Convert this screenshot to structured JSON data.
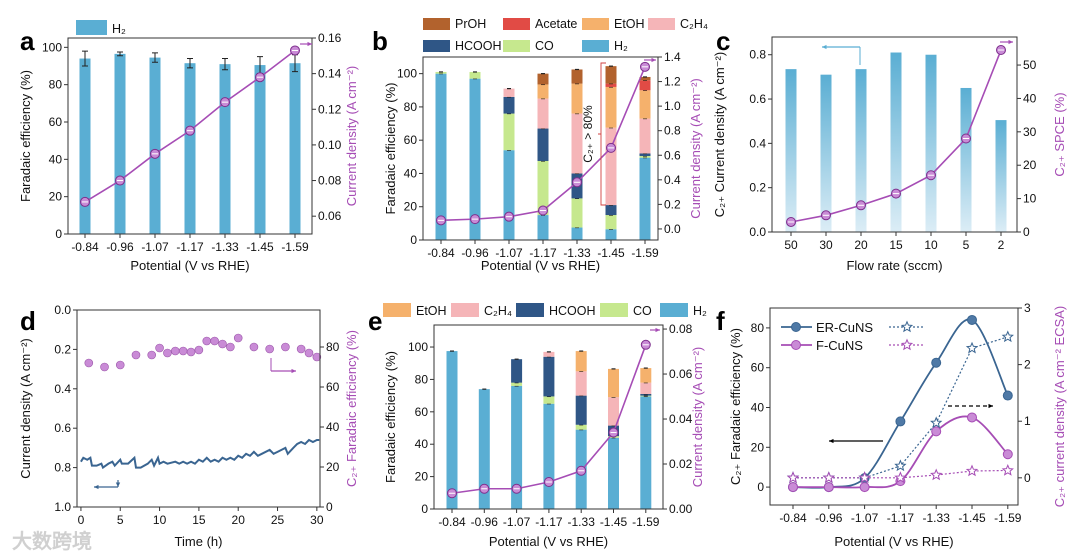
{
  "watermark": "大数跨境",
  "colors": {
    "H2": "#5aaed3",
    "CO": "#c6e88e",
    "HCOOH": "#2f5686",
    "C2H4": "#f5b5b8",
    "EtOH": "#f5b16c",
    "Acetate": "#e14b45",
    "PrOH": "#b2622d",
    "purple": "#a64db5",
    "marker": "#c98bd6",
    "er": "#3a6591",
    "text": "#111111"
  },
  "chart_data": [
    {
      "panel": "a",
      "type": "bar+line",
      "categories": [
        "-0.84",
        "-0.96",
        "-1.07",
        "-1.17",
        "-1.33",
        "-1.45",
        "-1.59"
      ],
      "xlabel": "Potential (V vs RHE)",
      "ylabel": "Faradaic efficiency (%)",
      "y2label": "Current density (A cm⁻²)",
      "ylim": [
        0,
        105
      ],
      "yticks": [
        "0",
        "20",
        "40",
        "60",
        "80",
        "100"
      ],
      "y2lim": [
        0.05,
        0.16
      ],
      "y2ticks": [
        "0.06",
        "0.08",
        "0.10",
        "0.12",
        "0.14",
        "0.16"
      ],
      "legend": [
        {
          "name": "H₂",
          "key": "H2"
        }
      ],
      "bars": [
        {
          "name": "H₂",
          "key": "H2",
          "values": [
            94,
            96.5,
            94.5,
            91.5,
            91,
            90.5,
            91.5
          ],
          "errors": [
            4,
            1,
            2.5,
            2.5,
            3,
            4.5,
            4.5
          ]
        }
      ],
      "line": {
        "name": "Current density",
        "values": [
          0.068,
          0.08,
          0.095,
          0.108,
          0.124,
          0.138,
          0.153
        ]
      }
    },
    {
      "panel": "b",
      "type": "stacked-bar+line",
      "categories": [
        "-0.84",
        "-0.96",
        "-1.07",
        "-1.17",
        "-1.33",
        "-1.45",
        "-1.59"
      ],
      "xlabel": "Potential (V vs RHE)",
      "ylabel": "Faradaic efficiency (%)",
      "y2label": "Current density (A cm⁻²)",
      "ylim": [
        0,
        110
      ],
      "yticks": [
        "0",
        "20",
        "40",
        "60",
        "80",
        "100"
      ],
      "y2lim": [
        -0.09,
        1.4
      ],
      "y2ticks": [
        "0.0",
        "0.2",
        "0.4",
        "0.6",
        "0.8",
        "1.0",
        "1.2",
        "1.4"
      ],
      "legend": [
        {
          "name": "PrOH",
          "key": "PrOH"
        },
        {
          "name": "Acetate",
          "key": "Acetate"
        },
        {
          "name": "EtOH",
          "key": "EtOH"
        },
        {
          "name": "C₂H₄",
          "key": "C2H4"
        },
        {
          "name": "HCOOH",
          "key": "HCOOH"
        },
        {
          "name": "CO",
          "key": "CO"
        },
        {
          "name": "H₂",
          "key": "H2"
        }
      ],
      "stack": [
        {
          "name": "H₂",
          "key": "H2",
          "values": [
            100,
            97,
            54,
            15,
            7.5,
            6.5,
            49.5
          ]
        },
        {
          "name": "CO",
          "key": "CO",
          "values": [
            1,
            4,
            22,
            32.5,
            17.5,
            8.5,
            1
          ]
        },
        {
          "name": "HCOOH",
          "key": "HCOOH",
          "values": [
            0,
            0,
            10,
            19.5,
            15,
            6,
            1.5
          ]
        },
        {
          "name": "C₂H₄",
          "key": "C2H4",
          "values": [
            0,
            0,
            5,
            18,
            36,
            46.5,
            21
          ]
        },
        {
          "name": "EtOH",
          "key": "EtOH",
          "values": [
            0,
            0,
            0,
            8.5,
            18,
            24.5,
            17
          ]
        },
        {
          "name": "Acetate",
          "key": "Acetate",
          "values": [
            0,
            0,
            0,
            0,
            0,
            2,
            6
          ]
        },
        {
          "name": "PrOH",
          "key": "PrOH",
          "values": [
            0,
            0,
            0,
            6.5,
            8.5,
            10.5,
            2
          ]
        }
      ],
      "line": {
        "name": "Current density",
        "values": [
          0.07,
          0.08,
          0.1,
          0.15,
          0.38,
          0.66,
          1.32
        ]
      },
      "annotation": "C₂₊ > 80%"
    },
    {
      "panel": "c",
      "type": "bar+line",
      "categories": [
        "50",
        "30",
        "20",
        "15",
        "10",
        "5",
        "2"
      ],
      "xlabel": "Flow rate (sccm)",
      "ylabel": "C₂₊ Current density (A cm⁻²)",
      "y2label": "C₂₊ SPCE (%)",
      "ylim": [
        0,
        0.88
      ],
      "yticks": [
        "0.0",
        "0.2",
        "0.4",
        "0.6",
        "0.8"
      ],
      "y2lim": [
        0,
        58.4
      ],
      "y2ticks": [
        "0",
        "10",
        "20",
        "30",
        "40",
        "50"
      ],
      "bars": [
        {
          "name": "C₂₊ current density",
          "key": "H2",
          "values": [
            0.735,
            0.71,
            0.735,
            0.81,
            0.8,
            0.65,
            0.505
          ]
        }
      ],
      "line": {
        "name": "C₂₊ SPCE",
        "values": [
          3,
          5,
          8,
          11.5,
          17,
          28,
          54.5
        ]
      }
    },
    {
      "panel": "d",
      "type": "line+scatter",
      "xlabel": "Time (h)",
      "ylabel": "Current density (A cm⁻²)",
      "y2label": "C₂₊ Faradaic efficiency (%)",
      "xlim": [
        -0.5,
        30.4
      ],
      "xticks": [
        "0",
        "5",
        "10",
        "15",
        "20",
        "25",
        "30"
      ],
      "ylim": [
        0,
        1
      ],
      "yinverted": true,
      "yticks": [
        "0.0",
        "0.2",
        "0.4",
        "0.6",
        "0.8",
        "1.0"
      ],
      "y2lim": [
        0,
        98.5
      ],
      "y2ticks": [
        "0",
        "20",
        "40",
        "60",
        "80"
      ],
      "current": [
        [
          0,
          0.77
        ],
        [
          0.3,
          0.75
        ],
        [
          0.8,
          0.76
        ],
        [
          1.2,
          0.75
        ],
        [
          1.4,
          0.79
        ],
        [
          2,
          0.79
        ],
        [
          2.6,
          0.78
        ],
        [
          2.8,
          0.8
        ],
        [
          3.5,
          0.78
        ],
        [
          4,
          0.77
        ],
        [
          4.3,
          0.79
        ],
        [
          5,
          0.76
        ],
        [
          5.2,
          0.78
        ],
        [
          6,
          0.78
        ],
        [
          6.8,
          0.75
        ],
        [
          7,
          0.8
        ],
        [
          7.6,
          0.8
        ],
        [
          8.5,
          0.78
        ],
        [
          9,
          0.76
        ],
        [
          9.3,
          0.79
        ],
        [
          9.8,
          0.75
        ],
        [
          10,
          0.78
        ],
        [
          10.5,
          0.77
        ],
        [
          11,
          0.78
        ],
        [
          12,
          0.77
        ],
        [
          12.5,
          0.78
        ],
        [
          13,
          0.77
        ],
        [
          13.5,
          0.78
        ],
        [
          14,
          0.77
        ],
        [
          14.5,
          0.78
        ],
        [
          15,
          0.76
        ],
        [
          15.5,
          0.77
        ],
        [
          16,
          0.75
        ],
        [
          16.5,
          0.77
        ],
        [
          17,
          0.76
        ],
        [
          17.5,
          0.77
        ],
        [
          18,
          0.75
        ],
        [
          18.5,
          0.76
        ],
        [
          19,
          0.75
        ],
        [
          19.5,
          0.76
        ],
        [
          20,
          0.74
        ],
        [
          20.5,
          0.75
        ],
        [
          21,
          0.73
        ],
        [
          21.5,
          0.74
        ],
        [
          22,
          0.72
        ],
        [
          22.5,
          0.74
        ],
        [
          23,
          0.73
        ],
        [
          24,
          0.71
        ],
        [
          24.5,
          0.73
        ],
        [
          25,
          0.72
        ],
        [
          26,
          0.7
        ],
        [
          26.3,
          0.73
        ],
        [
          27,
          0.7
        ],
        [
          27.5,
          0.68
        ],
        [
          28,
          0.67
        ],
        [
          28.5,
          0.68
        ],
        [
          29,
          0.66
        ],
        [
          29.5,
          0.67
        ],
        [
          30,
          0.66
        ],
        [
          30.3,
          0.66
        ]
      ],
      "fe": [
        [
          1,
          72
        ],
        [
          3,
          70
        ],
        [
          5,
          71
        ],
        [
          7,
          76
        ],
        [
          9,
          76
        ],
        [
          10,
          79.5
        ],
        [
          11,
          77
        ],
        [
          12,
          78
        ],
        [
          13,
          78
        ],
        [
          14,
          77.5
        ],
        [
          15,
          78.5
        ],
        [
          16,
          83
        ],
        [
          17,
          83
        ],
        [
          18,
          81.5
        ],
        [
          19,
          80
        ],
        [
          20,
          84.5
        ],
        [
          22,
          80
        ],
        [
          24,
          79
        ],
        [
          26,
          80
        ],
        [
          28,
          79
        ],
        [
          29,
          77
        ],
        [
          30,
          75
        ]
      ]
    },
    {
      "panel": "e",
      "type": "stacked-bar+line",
      "categories": [
        "-0.84",
        "-0.96",
        "-1.07",
        "-1.17",
        "-1.33",
        "-1.45",
        "-1.59"
      ],
      "xlabel": "Potential (V vs RHE)",
      "ylabel": "Faradaic efficiency (%)",
      "y2label": "Current density (A cm⁻²)",
      "ylim": [
        0,
        113.6
      ],
      "yticks": [
        "0",
        "20",
        "40",
        "60",
        "80",
        "100"
      ],
      "y2lim": [
        0,
        0.0818
      ],
      "y2ticks": [
        "0.00",
        "0.02",
        "0.04",
        "0.06",
        "0.08"
      ],
      "legend": [
        {
          "name": "EtOH",
          "key": "EtOH"
        },
        {
          "name": "C₂H₄",
          "key": "C2H4"
        },
        {
          "name": "HCOOH",
          "key": "HCOOH"
        },
        {
          "name": "CO",
          "key": "CO"
        },
        {
          "name": "H₂",
          "key": "H2"
        }
      ],
      "stack": [
        {
          "name": "H₂",
          "key": "H2",
          "values": [
            97.5,
            74,
            76,
            65,
            49,
            44,
            69.5
          ]
        },
        {
          "name": "CO",
          "key": "CO",
          "values": [
            0,
            0,
            2,
            4.5,
            3,
            1,
            0.5
          ]
        },
        {
          "name": "HCOOH",
          "key": "HCOOH",
          "values": [
            0,
            0,
            14.5,
            24.5,
            18,
            6.5,
            1
          ]
        },
        {
          "name": "C₂H₄",
          "key": "C2H4",
          "values": [
            0,
            0,
            0,
            3,
            15,
            17.5,
            7
          ]
        },
        {
          "name": "EtOH",
          "key": "EtOH",
          "values": [
            0,
            0,
            0,
            0,
            12.5,
            17.5,
            9
          ]
        }
      ],
      "line": {
        "name": "Current density",
        "values": [
          0.007,
          0.009,
          0.009,
          0.012,
          0.017,
          0.034,
          0.073
        ]
      }
    },
    {
      "panel": "f",
      "type": "line",
      "categories": [
        "-0.84",
        "-0.96",
        "-1.07",
        "-1.17",
        "-1.33",
        "-1.45",
        "-1.59"
      ],
      "xlabel": "Potential (V vs RHE)",
      "ylabel": "C₂₊ Faradaic efficiency (%)",
      "y2label": "C₂₊ current density (A cm⁻² ECSA)",
      "ylim": [
        -9,
        90
      ],
      "yticks": [
        "0",
        "20",
        "40",
        "60",
        "80"
      ],
      "y2lim": [
        -0.48,
        3
      ],
      "y2ticks": [
        "0",
        "1",
        "2",
        "3"
      ],
      "series": [
        {
          "name": "ER-CuNS",
          "axis": "left",
          "style": "solid",
          "color": "er",
          "values": [
            0,
            0,
            4.5,
            33,
            62.5,
            84,
            46
          ]
        },
        {
          "name": "F-CuNS",
          "axis": "left",
          "style": "solid",
          "color": "purple",
          "values": [
            0,
            0,
            0,
            3,
            28,
            35,
            16.5
          ]
        },
        {
          "name": "ER-CuNS",
          "axis": "right",
          "style": "dotted",
          "color": "er",
          "values": [
            0,
            0,
            0,
            0.21,
            0.97,
            2.29,
            2.49
          ]
        },
        {
          "name": "F-CuNS",
          "axis": "right",
          "style": "dotted",
          "color": "purple",
          "values": [
            0,
            0,
            0,
            0,
            0.05,
            0.12,
            0.13
          ]
        }
      ],
      "legend": [
        "ER-CuNS",
        "F-CuNS"
      ]
    }
  ]
}
